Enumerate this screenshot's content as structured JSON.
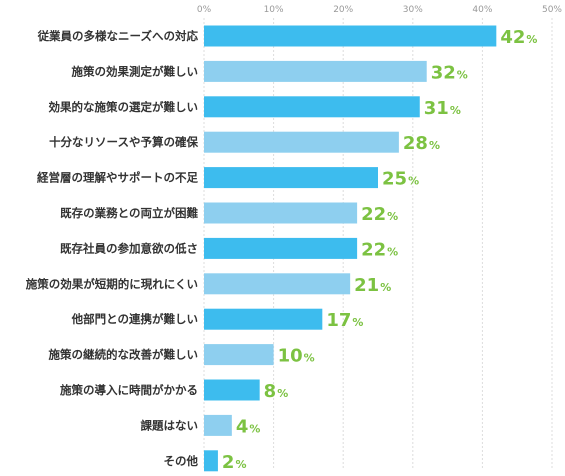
{
  "chart_data": {
    "type": "bar",
    "orientation": "horizontal",
    "title": "",
    "xlabel": "",
    "ylabel": "",
    "xlim": [
      0,
      50
    ],
    "ticks": [
      "0%",
      "10%",
      "20%",
      "30%",
      "40%",
      "50%"
    ],
    "value_unit": "%",
    "grid": true,
    "categories": [
      "従業員の多様なニーズへの対応",
      "施策の効果測定が難しい",
      "効果的な施策の選定が難しい",
      "十分なリソースや予算の確保",
      "経営層の理解やサポートの不足",
      "既存の業務との両立が困難",
      "既存社員の参加意欲の低さ",
      "施策の効果が短期的に現れにくい",
      "他部門との連携が難しい",
      "施策の継続的な改善が難しい",
      "施策の導入に時間がかかる",
      "課題はない",
      "その他"
    ],
    "values": [
      42,
      32,
      31,
      28,
      25,
      22,
      22,
      21,
      17,
      10,
      8,
      4,
      2
    ],
    "colors": {
      "bar_dark": "#3dbcee",
      "bar_light": "#8ecfef",
      "value_text": "#7cc242",
      "grid": "#dddddd",
      "axis_text": "#999999",
      "label_text": "#333333"
    }
  }
}
